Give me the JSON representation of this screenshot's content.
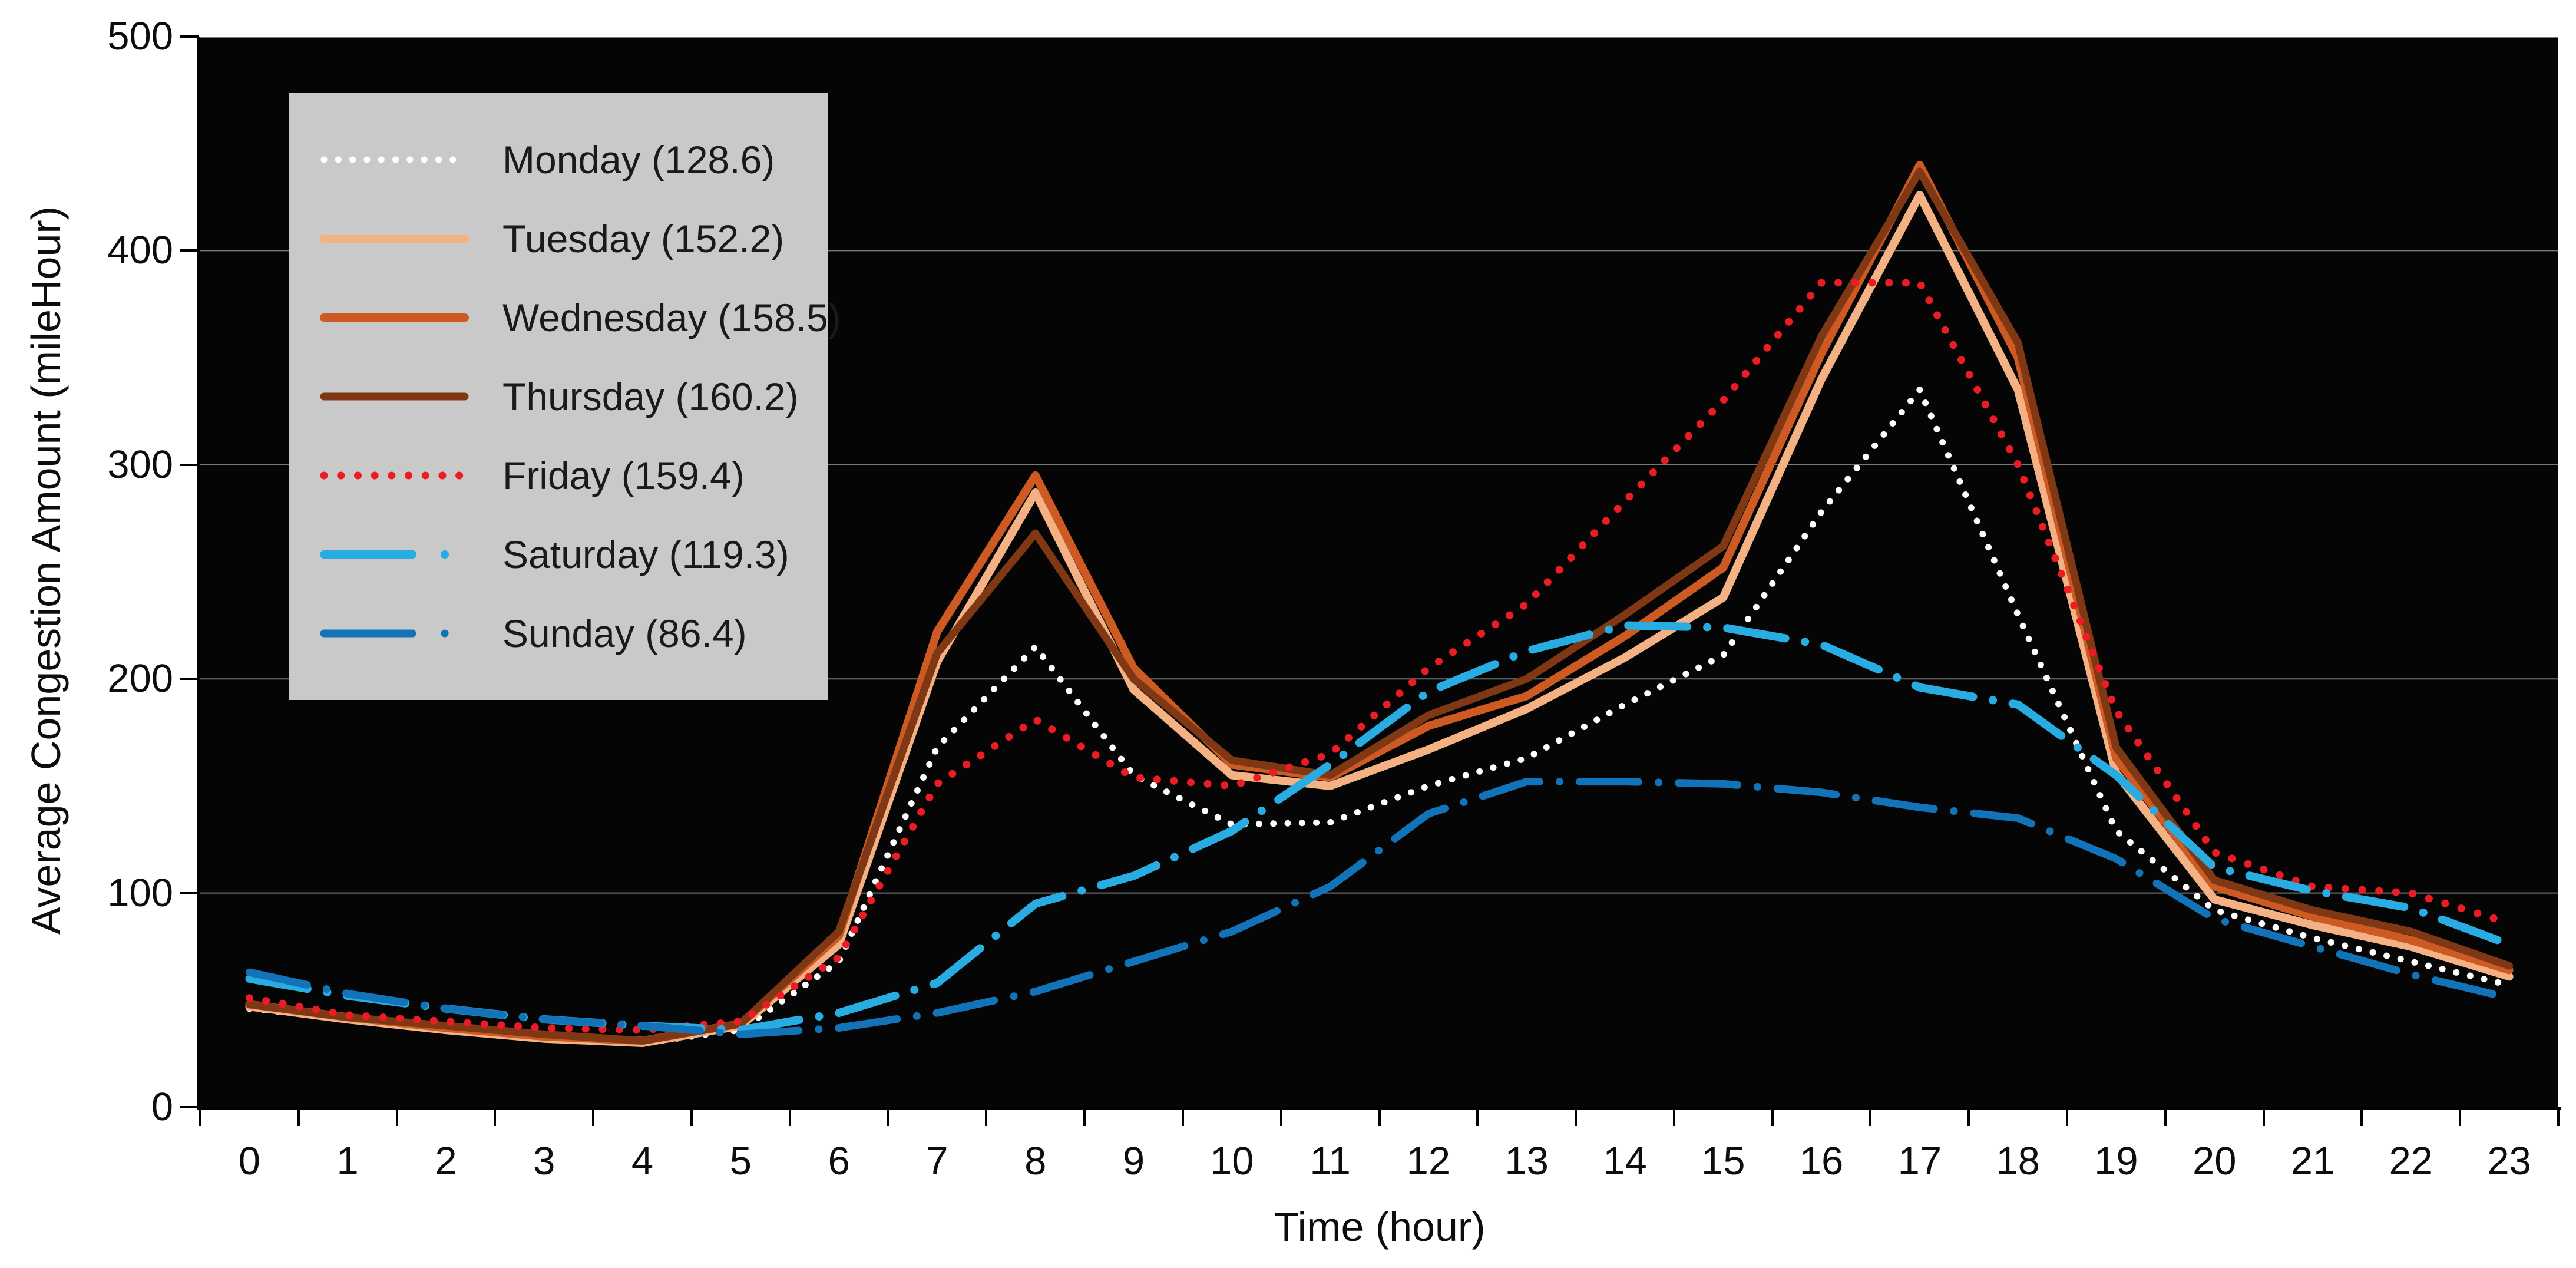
{
  "chart_data": {
    "type": "line",
    "title": "",
    "xlabel": "Time (hour)",
    "ylabel": "Average Congestion Amount (mileHour)",
    "x": [
      0,
      1,
      2,
      3,
      4,
      5,
      6,
      7,
      8,
      9,
      10,
      11,
      12,
      13,
      14,
      15,
      16,
      17,
      18,
      19,
      20,
      21,
      22,
      23
    ],
    "ylim": [
      0,
      500
    ],
    "yticks": [
      0,
      100,
      200,
      300,
      400,
      500
    ],
    "grid": true,
    "plot_background": "#050505",
    "gridline_color": "#787878",
    "legend_position": "top-left",
    "legend_background": "#c9c9c9",
    "series": [
      {
        "name": "Monday",
        "label": "Monday (128.6)",
        "average": 128.6,
        "color": "#ffffff",
        "line_style": "dotted",
        "line_width": 11,
        "values": [
          46,
          41,
          37,
          33,
          30,
          36,
          68,
          168,
          215,
          155,
          132,
          133,
          150,
          163,
          188,
          211,
          278,
          335,
          230,
          129,
          92,
          79,
          68,
          57
        ]
      },
      {
        "name": "Tuesday",
        "label": "Tuesday (152.2)",
        "average": 152.2,
        "color": "#f4b184",
        "line_style": "solid",
        "line_width": 14,
        "values": [
          47,
          41,
          36,
          32,
          30,
          38,
          76,
          208,
          287,
          195,
          155,
          150,
          167,
          186,
          210,
          238,
          340,
          426,
          335,
          156,
          97,
          85,
          75,
          61
        ]
      },
      {
        "name": "Wednesday",
        "label": "Wednesday (158.5)",
        "average": 158.5,
        "color": "#cd5a23",
        "line_style": "solid",
        "line_width": 14,
        "values": [
          48,
          42,
          37,
          33,
          31,
          39,
          80,
          222,
          295,
          205,
          160,
          154,
          178,
          192,
          220,
          252,
          352,
          440,
          350,
          163,
          103,
          89,
          78,
          64
        ]
      },
      {
        "name": "Thursday",
        "label": "Thursday (160.2)",
        "average": 160.2,
        "color": "#7f3714",
        "line_style": "solid",
        "line_width": 13,
        "values": [
          48,
          42,
          38,
          34,
          31,
          39,
          82,
          212,
          268,
          200,
          162,
          155,
          183,
          200,
          230,
          262,
          360,
          437,
          357,
          168,
          106,
          92,
          82,
          66
        ]
      },
      {
        "name": "Friday",
        "label": "Friday (159.4)",
        "average": 159.4,
        "color": "#ec1c24",
        "line_style": "dotted",
        "line_width": 13,
        "values": [
          51,
          43,
          40,
          37,
          36,
          40,
          70,
          151,
          181,
          154,
          150,
          165,
          205,
          235,
          283,
          330,
          385,
          385,
          300,
          185,
          119,
          103,
          100,
          86
        ]
      },
      {
        "name": "Saturday",
        "label": "Saturday (119.3)",
        "average": 119.3,
        "color": "#29ace2",
        "line_style": "dash-dot",
        "line_width": 14,
        "values": [
          60,
          52,
          46,
          41,
          38,
          36,
          44,
          58,
          95,
          108,
          129,
          160,
          194,
          213,
          225,
          224,
          216,
          196,
          188,
          155,
          112,
          101,
          93,
          76
        ]
      },
      {
        "name": "Sunday",
        "label": "Sunday (86.4)",
        "average": 86.4,
        "color": "#1273b9",
        "line_style": "dash-dot",
        "line_width": 13,
        "values": [
          63,
          53,
          46,
          41,
          38,
          34,
          37,
          44,
          54,
          68,
          82,
          103,
          137,
          152,
          152,
          151,
          147,
          140,
          135,
          116,
          88,
          75,
          62,
          51
        ]
      }
    ]
  }
}
